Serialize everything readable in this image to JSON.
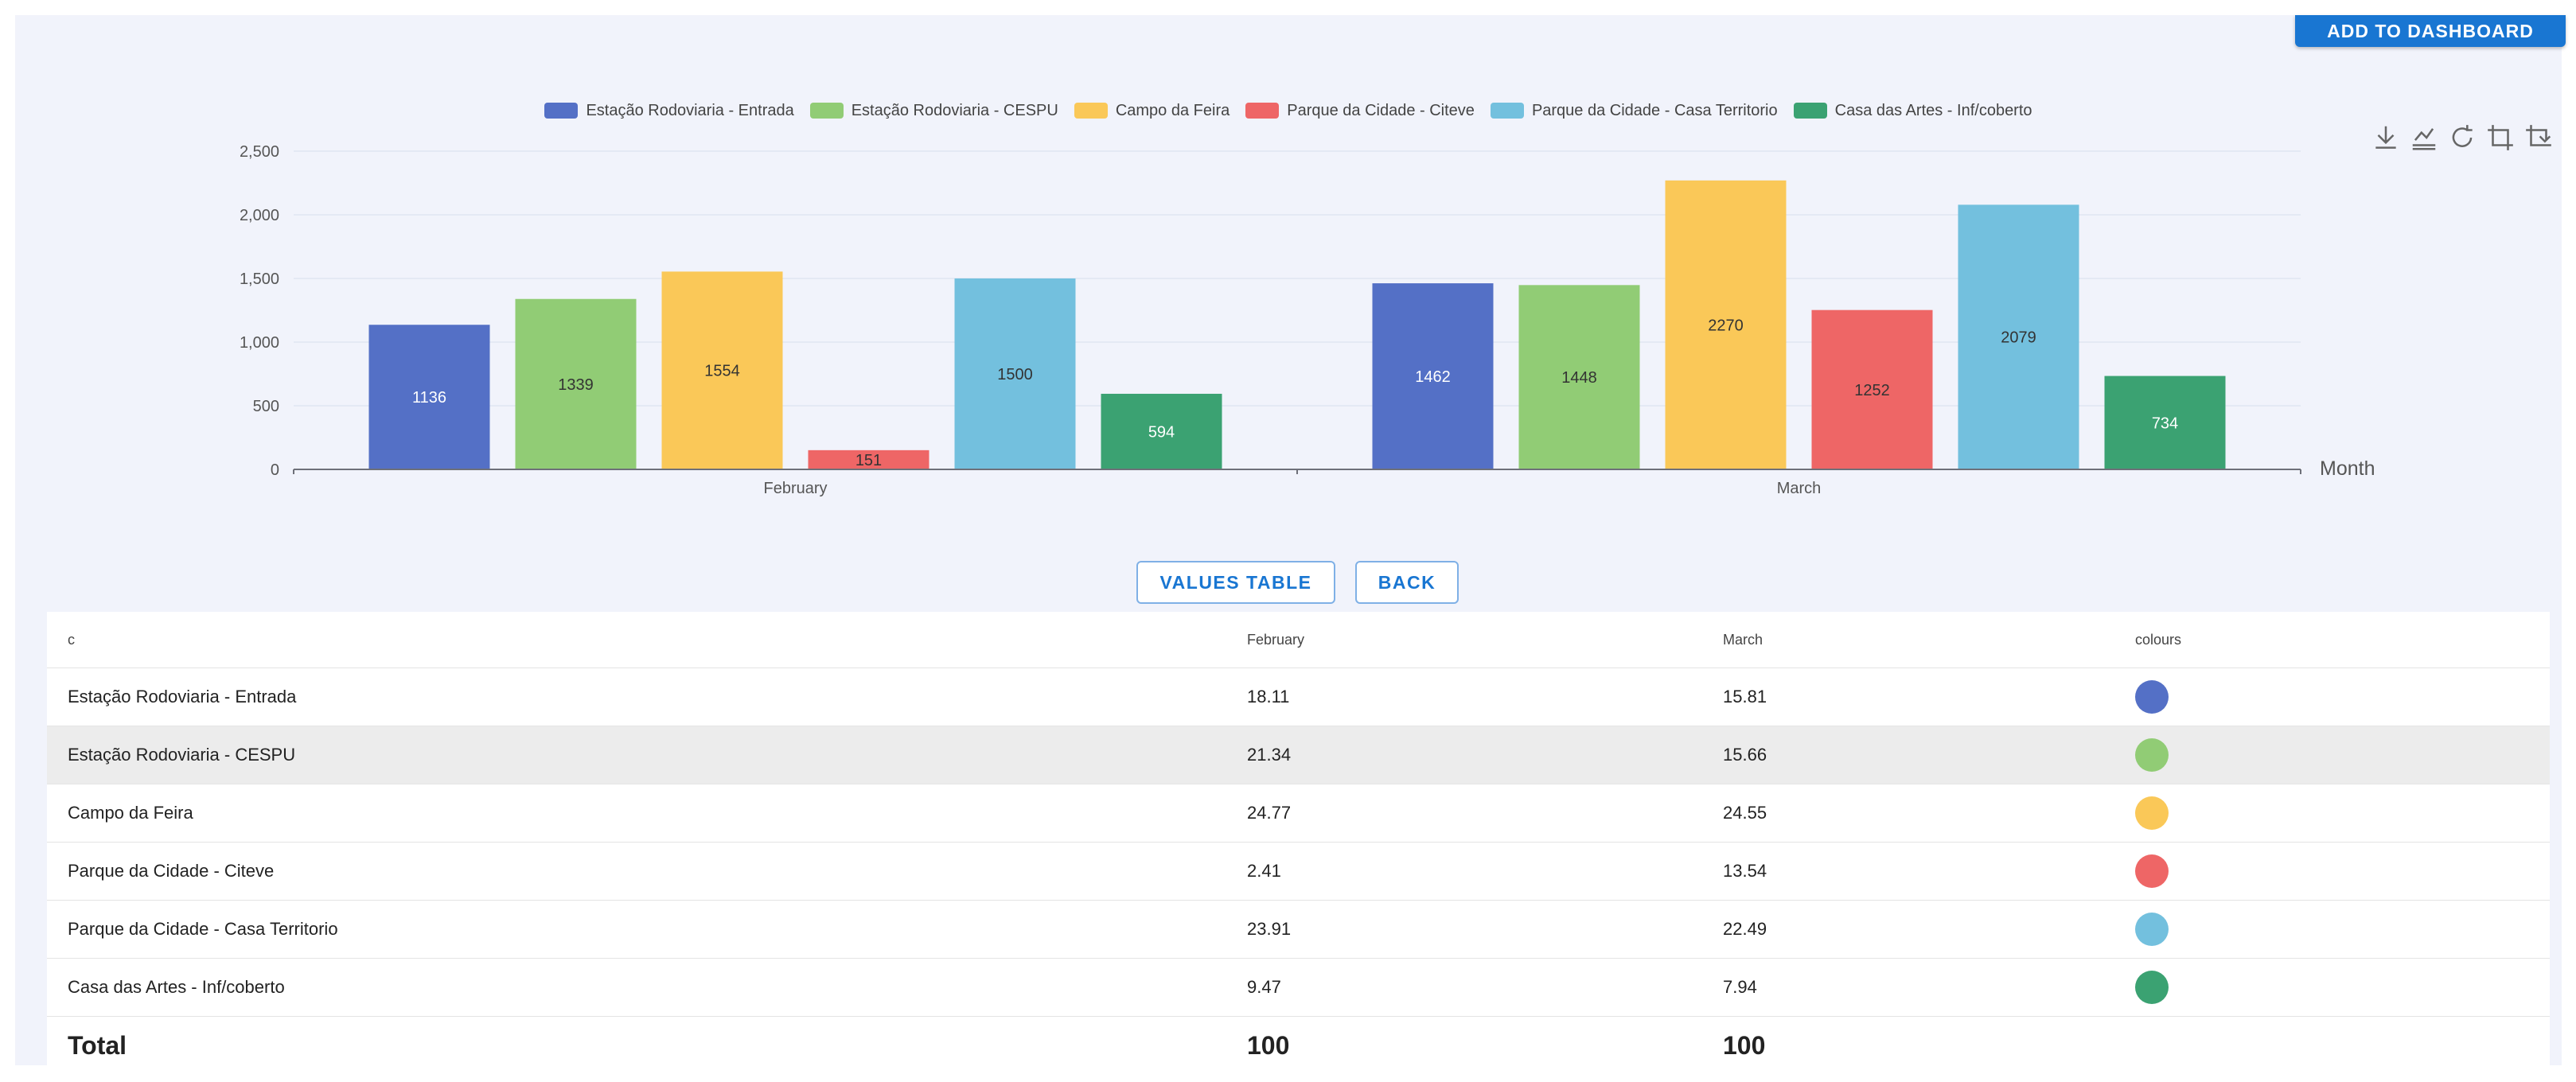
{
  "toolbar": {
    "add_to_dashboard_label": "ADD TO DASHBOARD"
  },
  "toolbox_icons": [
    "download-icon",
    "data-view-icon",
    "restore-icon",
    "crop-zoom-icon",
    "crop-back-icon"
  ],
  "chart_data": {
    "type": "bar",
    "categories": [
      "February",
      "March"
    ],
    "series": [
      {
        "name": "Estação Rodoviaria - Entrada",
        "color": "#5470c6",
        "values": [
          1136,
          1462
        ]
      },
      {
        "name": "Estação Rodoviaria - CESPU",
        "color": "#91cc75",
        "values": [
          1339,
          1448
        ]
      },
      {
        "name": "Campo da Feira",
        "color": "#fac858",
        "values": [
          1554,
          2270
        ]
      },
      {
        "name": "Parque da Cidade - Citeve",
        "color": "#ee6666",
        "values": [
          151,
          1252
        ]
      },
      {
        "name": "Parque da Cidade - Casa Territorio",
        "color": "#73c0de",
        "values": [
          1500,
          2079
        ]
      },
      {
        "name": "Casa das Artes -  Inf/coberto",
        "color": "#3ba272",
        "values": [
          594,
          734
        ]
      }
    ],
    "xlabel": "Month",
    "ylabel": "",
    "ylim": [
      0,
      2500
    ],
    "yticks": [
      0,
      500,
      1000,
      1500,
      2000,
      2500
    ],
    "ytick_labels": [
      "0",
      "500",
      "1,000",
      "1,500",
      "2,000",
      "2,500"
    ],
    "legend_position": "top-center",
    "grid": true,
    "data_labels": true
  },
  "buttons": {
    "values_table": "VALUES TABLE",
    "back": "BACK"
  },
  "table": {
    "headers": [
      "c",
      "February",
      "March",
      "colours"
    ],
    "rows": [
      {
        "name": "Estação Rodoviaria - Entrada",
        "feb": "18.11",
        "mar": "15.81",
        "colour": "#5470c6"
      },
      {
        "name": "Estação Rodoviaria - CESPU",
        "feb": "21.34",
        "mar": "15.66",
        "colour": "#91cc75"
      },
      {
        "name": "Campo da Feira",
        "feb": "24.77",
        "mar": "24.55",
        "colour": "#fac858"
      },
      {
        "name": "Parque da Cidade - Citeve",
        "feb": "2.41",
        "mar": "13.54",
        "colour": "#ee6666"
      },
      {
        "name": "Parque da Cidade - Casa Territorio",
        "feb": "23.91",
        "mar": "22.49",
        "colour": "#73c0de"
      },
      {
        "name": "Casa das Artes - Inf/coberto",
        "feb": "9.47",
        "mar": "7.94",
        "colour": "#3ba272"
      }
    ],
    "total": {
      "label": "Total",
      "feb": "100",
      "mar": "100"
    }
  }
}
